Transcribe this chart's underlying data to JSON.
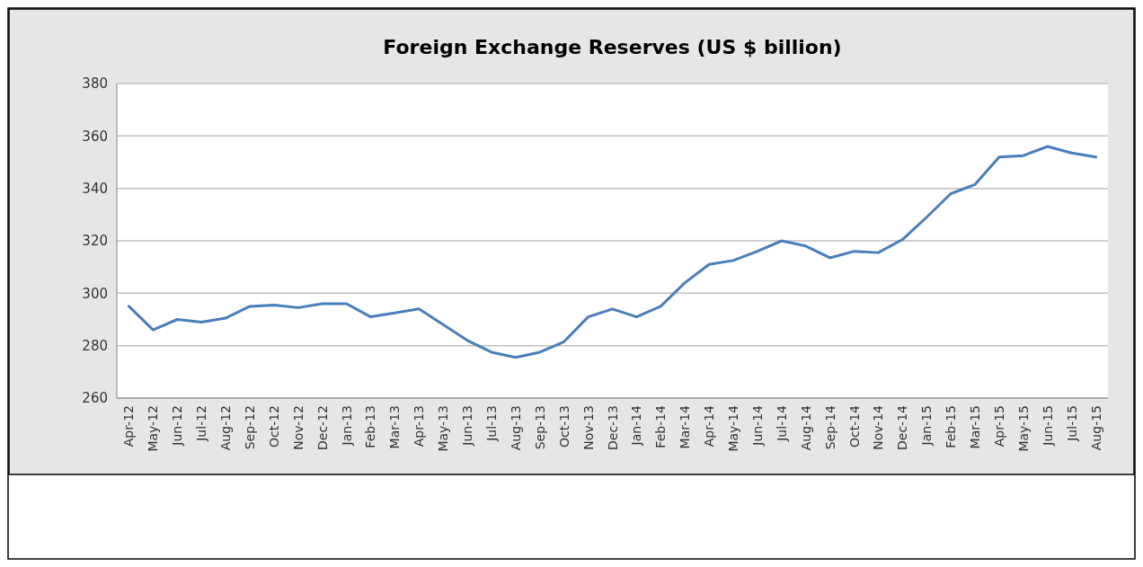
{
  "chart_data": {
    "type": "line",
    "title": "Foreign Exchange Reserves (US $ billion)",
    "categories": [
      "Apr-12",
      "May-12",
      "Jun-12",
      "Jul-12",
      "Aug-12",
      "Sep-12",
      "Oct-12",
      "Nov-12",
      "Dec-12",
      "Jan-13",
      "Feb-13",
      "Mar-13",
      "Apr-13",
      "May-13",
      "Jun-13",
      "Jul-13",
      "Aug-13",
      "Sep-13",
      "Oct-13",
      "Nov-13",
      "Dec-13",
      "Jan-14",
      "Feb-14",
      "Mar-14",
      "Apr-14",
      "May-14",
      "Jun-14",
      "Jul-14",
      "Aug-14",
      "Sep-14",
      "Oct-14",
      "Nov-14",
      "Dec-14",
      "Jan-15",
      "Feb-15",
      "Mar-15",
      "Apr-15",
      "May-15",
      "Jun-15",
      "Jul-15",
      "Aug-15"
    ],
    "series": [
      {
        "color": "#4a7ebb",
        "values": [
          295,
          286,
          290,
          289,
          290.5,
          295,
          295.5,
          294.5,
          296,
          296,
          291,
          292.5,
          294,
          288,
          282,
          277.5,
          275.5,
          277.5,
          281.5,
          291,
          294,
          291,
          295,
          304,
          311,
          312.5,
          316,
          320,
          318,
          313.5,
          316,
          315.5,
          320.5,
          329,
          338,
          341.5,
          352,
          352.5,
          356,
          353.5,
          352
        ]
      }
    ],
    "ylim": [
      260,
      380
    ],
    "yticks": [
      260,
      280,
      300,
      320,
      340,
      360,
      380
    ],
    "grid": "y",
    "marker": "none",
    "line_style": "solid"
  }
}
